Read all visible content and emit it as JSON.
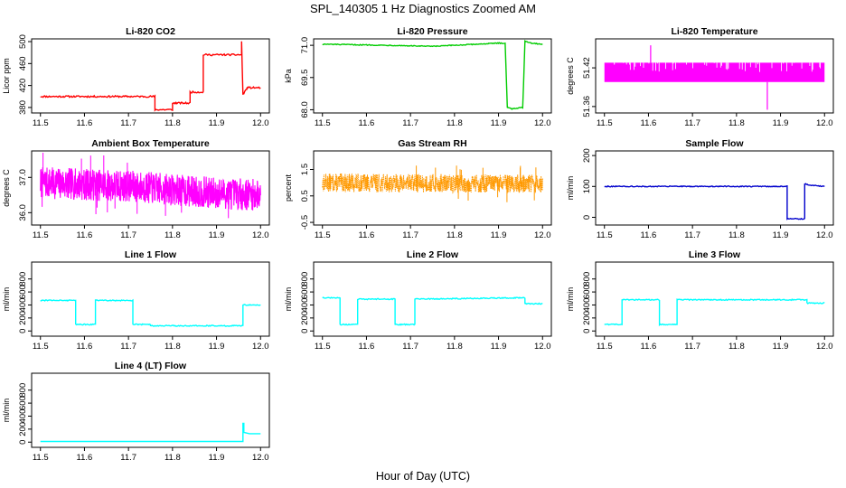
{
  "figure": {
    "title": "SPL_140305  1 Hz Diagnostics Zoomed AM",
    "xlabel": "Hour of Day (UTC)"
  },
  "chart_data": [
    {
      "type": "line",
      "title": "Li-820 CO2",
      "ylabel": "Licor ppm",
      "color": "#ff0000",
      "xlim": [
        11.48,
        12.02
      ],
      "ylim": [
        370,
        505
      ],
      "xticks": [
        "11.5",
        "11.6",
        "11.7",
        "11.8",
        "11.9",
        "12.0"
      ],
      "yticks": [
        "380",
        "420",
        "460",
        "500"
      ],
      "noise": 1.5,
      "x": [
        11.5,
        11.76,
        11.76,
        11.8,
        11.8,
        11.84,
        11.84,
        11.87,
        11.87,
        11.957,
        11.957,
        11.96,
        11.97,
        12.0
      ],
      "y": [
        400,
        400,
        376,
        376,
        388,
        388,
        408,
        408,
        476,
        476,
        500,
        404,
        416,
        416
      ]
    },
    {
      "type": "line",
      "title": "Li-820 Pressure",
      "ylabel": "kPa",
      "color": "#00cc00",
      "xlim": [
        11.48,
        12.02
      ],
      "ylim": [
        67.85,
        71.3
      ],
      "xticks": [
        "11.5",
        "11.6",
        "11.7",
        "11.8",
        "11.9",
        "12.0"
      ],
      "yticks": [
        "68.0",
        "69.5",
        "71.0"
      ],
      "noise": 0.02,
      "x": [
        11.5,
        11.65,
        11.75,
        11.9,
        11.915,
        11.92,
        11.93,
        11.955,
        11.96,
        11.975,
        12.0
      ],
      "y": [
        71.05,
        71.0,
        70.95,
        71.1,
        71.1,
        68.1,
        68.05,
        68.1,
        71.2,
        71.1,
        71.05
      ]
    },
    {
      "type": "band",
      "title": "Li-820 Temperature",
      "ylabel": "degrees C",
      "color": "#ff00ff",
      "xlim": [
        11.48,
        12.02
      ],
      "ylim": [
        51.35,
        51.465
      ],
      "xticks": [
        "11.5",
        "11.6",
        "11.7",
        "11.8",
        "11.9",
        "12.0"
      ],
      "yticks": [
        "51.36",
        "51.42"
      ],
      "band_low": 51.398,
      "band_high": 51.428,
      "spike_x": [
        11.605,
        11.87
      ],
      "spike_y": [
        51.455,
        51.355
      ]
    },
    {
      "type": "noise",
      "title": "Ambient Box Temperature",
      "ylabel": "degrees C",
      "color": "#ff00ff",
      "xlim": [
        11.48,
        12.02
      ],
      "ylim": [
        35.65,
        37.75
      ],
      "xticks": [
        "11.5",
        "11.6",
        "11.7",
        "11.8",
        "11.9",
        "12.0"
      ],
      "yticks": [
        "36.0",
        "37.0"
      ],
      "x": [
        11.5,
        11.6,
        11.7,
        11.8,
        11.9,
        12.0
      ],
      "center": [
        36.85,
        36.8,
        36.75,
        36.65,
        36.55,
        36.5
      ],
      "amplitude": 0.45,
      "seed": 7
    },
    {
      "type": "noise",
      "title": "Gas Stream RH",
      "ylabel": "percent",
      "color": "#ff9900",
      "style": "points",
      "xlim": [
        11.48,
        12.02
      ],
      "ylim": [
        -0.6,
        2.2
      ],
      "xticks": [
        "11.5",
        "11.6",
        "11.7",
        "11.8",
        "11.9",
        "12.0"
      ],
      "yticks": [
        "-0.5",
        "0.5",
        "1.5"
      ],
      "x": [
        11.5,
        12.0
      ],
      "center": [
        1.0,
        0.95
      ],
      "amplitude": 0.35,
      "seed": 13
    },
    {
      "type": "line",
      "title": "Sample Flow",
      "ylabel": "ml/min",
      "color": "#0000cc",
      "xlim": [
        11.48,
        12.02
      ],
      "ylim": [
        -25,
        215
      ],
      "xticks": [
        "11.5",
        "11.6",
        "11.7",
        "11.8",
        "11.9",
        "12.0"
      ],
      "yticks": [
        "0",
        "100",
        "200"
      ],
      "noise": 1.5,
      "x": [
        11.5,
        11.915,
        11.915,
        11.955,
        11.955,
        11.97,
        12.0
      ],
      "y": [
        100,
        100,
        -5,
        -5,
        108,
        104,
        100
      ]
    },
    {
      "type": "line",
      "title": "Line 1 Flow",
      "ylabel": "ml/min",
      "color": "#00ffff",
      "xlim": [
        11.48,
        12.02
      ],
      "ylim": [
        -80,
        1060
      ],
      "xticks": [
        "11.5",
        "11.6",
        "11.7",
        "11.8",
        "11.9",
        "12.0"
      ],
      "yticks": [
        "0",
        "200",
        "400",
        "600",
        "800"
      ],
      "noise": 8,
      "x": [
        11.5,
        11.58,
        11.58,
        11.625,
        11.625,
        11.71,
        11.71,
        11.75,
        11.75,
        11.96,
        11.96,
        12.0
      ],
      "y": [
        470,
        470,
        100,
        100,
        470,
        470,
        100,
        100,
        80,
        80,
        400,
        400
      ]
    },
    {
      "type": "line",
      "title": "Line 2 Flow",
      "ylabel": "ml/min",
      "color": "#00ffff",
      "xlim": [
        11.48,
        12.02
      ],
      "ylim": [
        -80,
        1060
      ],
      "xticks": [
        "11.5",
        "11.6",
        "11.7",
        "11.8",
        "11.9",
        "12.0"
      ],
      "yticks": [
        "0",
        "200",
        "400",
        "600",
        "800"
      ],
      "noise": 8,
      "x": [
        11.5,
        11.54,
        11.54,
        11.58,
        11.58,
        11.665,
        11.665,
        11.71,
        11.71,
        11.96,
        11.96,
        12.0
      ],
      "y": [
        510,
        510,
        100,
        100,
        490,
        490,
        100,
        100,
        490,
        510,
        420,
        420
      ]
    },
    {
      "type": "line",
      "title": "Line 3 Flow",
      "ylabel": "ml/min",
      "color": "#00ffff",
      "xlim": [
        11.48,
        12.02
      ],
      "ylim": [
        -80,
        1060
      ],
      "xticks": [
        "11.5",
        "11.6",
        "11.7",
        "11.8",
        "11.9",
        "12.0"
      ],
      "yticks": [
        "0",
        "200",
        "400",
        "600",
        "800"
      ],
      "noise": 8,
      "x": [
        11.5,
        11.54,
        11.54,
        11.625,
        11.625,
        11.665,
        11.665,
        11.96,
        11.96,
        12.0
      ],
      "y": [
        100,
        100,
        480,
        480,
        100,
        100,
        480,
        480,
        430,
        430
      ]
    },
    {
      "type": "line",
      "title": "Line 4 (LT) Flow",
      "ylabel": "ml/min",
      "color": "#00ffff",
      "xlim": [
        11.48,
        12.02
      ],
      "ylim": [
        -80,
        1060
      ],
      "xticks": [
        "11.5",
        "11.6",
        "11.7",
        "11.8",
        "11.9",
        "12.0"
      ],
      "yticks": [
        "0",
        "200",
        "400",
        "600",
        "800"
      ],
      "noise": 0,
      "x": [
        11.5,
        11.96,
        11.96,
        11.962,
        11.962,
        11.975,
        12.0
      ],
      "y": [
        10,
        10,
        290,
        290,
        150,
        130,
        130
      ]
    }
  ]
}
